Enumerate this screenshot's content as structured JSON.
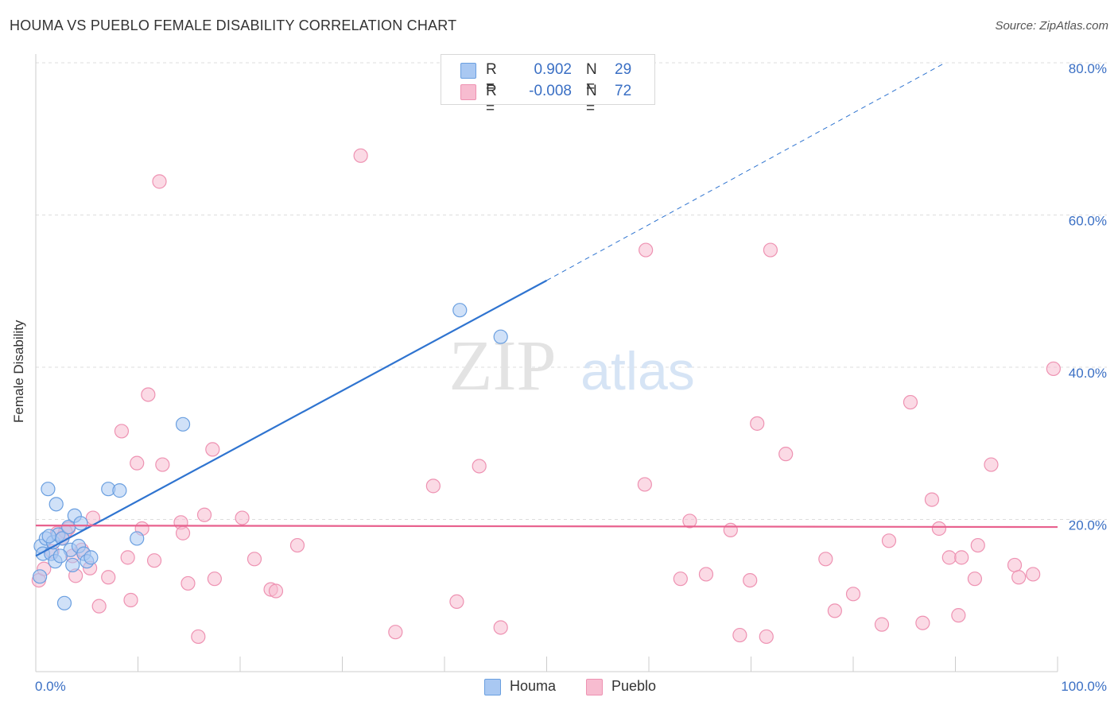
{
  "header": {
    "title": "HOUMA VS PUEBLO FEMALE DISABILITY CORRELATION CHART",
    "source": "Source: ZipAtlas.com"
  },
  "stats": [
    {
      "series": "Houma",
      "r_label": "R =",
      "r_value": "0.902",
      "n_label": "N =",
      "n_value": "29"
    },
    {
      "series": "Pueblo",
      "r_label": "R =",
      "r_value": "-0.008",
      "n_label": "N =",
      "n_value": "72"
    }
  ],
  "watermark": {
    "zip": "ZIP",
    "atlas": "atlas"
  },
  "colors": {
    "houma_fill": "#a9c8f2",
    "houma_stroke": "#6a9fe0",
    "houma_line": "#2f74d0",
    "pueblo_fill": "#f7bcd0",
    "pueblo_stroke": "#ee92b2",
    "pueblo_line": "#e8618e",
    "grid": "#dddddd",
    "tick_text": "#3a6fc4"
  },
  "chart_data": {
    "type": "scatter",
    "title": "HOUMA VS PUEBLO FEMALE DISABILITY CORRELATION CHART",
    "xlabel": "",
    "ylabel": "Female Disability",
    "xlim": [
      0,
      100
    ],
    "ylim": [
      0,
      80
    ],
    "x_tick_labels": [
      {
        "value": 0,
        "label": "0.0%"
      },
      {
        "value": 100,
        "label": "100.0%"
      }
    ],
    "y_tick_labels": [
      {
        "value": 20,
        "label": "20.0%"
      },
      {
        "value": 40,
        "label": "40.0%"
      },
      {
        "value": 60,
        "label": "60.0%"
      },
      {
        "value": 80,
        "label": "80.0%"
      }
    ],
    "y_gridlines": [
      20,
      40,
      60,
      80
    ],
    "legend": [
      "Houma",
      "Pueblo"
    ],
    "series": [
      {
        "name": "Houma",
        "points": [
          [
            0.4,
            12.5
          ],
          [
            0.5,
            16.5
          ],
          [
            0.7,
            15.5
          ],
          [
            1.0,
            17.5
          ],
          [
            1.2,
            24.0
          ],
          [
            1.5,
            15.5
          ],
          [
            1.7,
            17.0
          ],
          [
            1.9,
            14.5
          ],
          [
            2.0,
            22.0
          ],
          [
            2.2,
            18.0
          ],
          [
            2.6,
            17.5
          ],
          [
            2.8,
            9.0
          ],
          [
            3.2,
            19.0
          ],
          [
            3.4,
            16.0
          ],
          [
            3.6,
            14.0
          ],
          [
            3.8,
            20.5
          ],
          [
            4.2,
            16.5
          ],
          [
            4.4,
            19.5
          ],
          [
            4.7,
            15.5
          ],
          [
            5.0,
            14.5
          ],
          [
            5.4,
            15.0
          ],
          [
            7.1,
            24.0
          ],
          [
            8.2,
            23.8
          ],
          [
            9.9,
            17.5
          ],
          [
            14.4,
            32.5
          ],
          [
            41.5,
            47.5
          ],
          [
            45.5,
            44.0
          ],
          [
            1.3,
            17.8
          ],
          [
            2.4,
            15.2
          ]
        ],
        "trend": {
          "x0": 0,
          "y0": 15.2,
          "x1": 50,
          "y1": 51.4,
          "dashed_to_x": 89,
          "dashed_to_y": 80
        }
      },
      {
        "name": "Pueblo",
        "points": [
          [
            0.3,
            12.0
          ],
          [
            0.8,
            13.5
          ],
          [
            1.6,
            15.8
          ],
          [
            2.1,
            18.2
          ],
          [
            2.6,
            17.6
          ],
          [
            3.2,
            18.8
          ],
          [
            3.6,
            15.2
          ],
          [
            3.9,
            12.6
          ],
          [
            4.5,
            16.0
          ],
          [
            5.3,
            13.6
          ],
          [
            5.6,
            20.2
          ],
          [
            6.2,
            8.6
          ],
          [
            7.1,
            12.4
          ],
          [
            8.4,
            31.6
          ],
          [
            9.0,
            15.0
          ],
          [
            9.3,
            9.4
          ],
          [
            9.9,
            27.4
          ],
          [
            10.4,
            18.8
          ],
          [
            11.0,
            36.4
          ],
          [
            11.6,
            14.6
          ],
          [
            12.1,
            64.4
          ],
          [
            12.4,
            27.2
          ],
          [
            14.2,
            19.6
          ],
          [
            14.4,
            18.2
          ],
          [
            14.9,
            11.6
          ],
          [
            15.9,
            4.6
          ],
          [
            16.5,
            20.6
          ],
          [
            17.3,
            29.2
          ],
          [
            17.5,
            12.2
          ],
          [
            20.2,
            20.2
          ],
          [
            21.4,
            14.8
          ],
          [
            23.0,
            10.8
          ],
          [
            23.5,
            10.6
          ],
          [
            25.6,
            16.6
          ],
          [
            31.8,
            67.8
          ],
          [
            35.2,
            5.2
          ],
          [
            38.9,
            24.4
          ],
          [
            41.2,
            9.2
          ],
          [
            43.4,
            27.0
          ],
          [
            45.5,
            5.8
          ],
          [
            59.6,
            24.6
          ],
          [
            59.7,
            55.4
          ],
          [
            63.1,
            12.2
          ],
          [
            64.0,
            19.8
          ],
          [
            65.6,
            12.8
          ],
          [
            68.0,
            18.6
          ],
          [
            68.9,
            4.8
          ],
          [
            69.9,
            12.0
          ],
          [
            70.6,
            32.6
          ],
          [
            71.5,
            4.6
          ],
          [
            71.9,
            55.4
          ],
          [
            73.4,
            28.6
          ],
          [
            77.3,
            14.8
          ],
          [
            78.2,
            8.0
          ],
          [
            80.0,
            10.2
          ],
          [
            82.8,
            6.2
          ],
          [
            83.5,
            17.2
          ],
          [
            85.6,
            35.4
          ],
          [
            86.8,
            6.4
          ],
          [
            87.7,
            22.6
          ],
          [
            88.4,
            18.8
          ],
          [
            89.4,
            15.0
          ],
          [
            90.3,
            7.4
          ],
          [
            90.6,
            15.0
          ],
          [
            91.9,
            12.2
          ],
          [
            92.2,
            16.6
          ],
          [
            93.5,
            27.2
          ],
          [
            95.8,
            14.0
          ],
          [
            96.2,
            12.4
          ],
          [
            97.6,
            12.8
          ],
          [
            99.6,
            39.8
          ],
          [
            2.9,
            18.4
          ]
        ],
        "trend": {
          "x0": 0,
          "y0": 19.2,
          "x1": 100,
          "y1": 19.0
        }
      }
    ]
  }
}
